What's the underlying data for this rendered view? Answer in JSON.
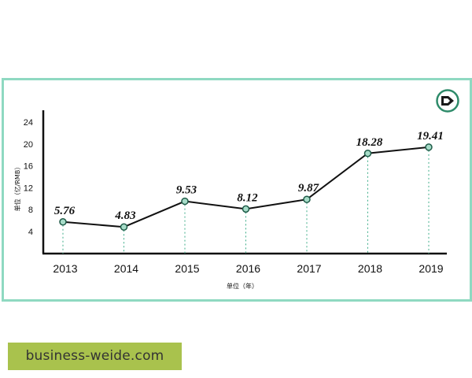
{
  "chart_data": {
    "type": "line",
    "categories": [
      "2013",
      "2014",
      "2015",
      "2016",
      "2017",
      "2018",
      "2019"
    ],
    "series": [
      {
        "values": [
          5.76,
          4.83,
          9.53,
          8.12,
          9.87,
          18.28,
          19.41
        ]
      }
    ],
    "data_labels": [
      "5.76",
      "4.83",
      "9.53",
      "8.12",
      "9.87",
      "18.28",
      "19.41"
    ],
    "yticks": [
      "4",
      "8",
      "12",
      "16",
      "20",
      "24"
    ],
    "ylim": [
      0,
      24
    ],
    "ylabel": "单位（亿/RMB）",
    "xlabel": "单位（年）",
    "grid": false,
    "colors": {
      "line": "#111111",
      "marker_fill": "#a6dcc8",
      "marker_stroke": "#1f5b48",
      "drop_line": "#3fae8a",
      "frame": "#8fd9c1",
      "logo": "#2e8b6a"
    }
  },
  "footer": {
    "watermark": "business-weide.com"
  },
  "logo": {
    "icon": "brand-logo-icon"
  }
}
